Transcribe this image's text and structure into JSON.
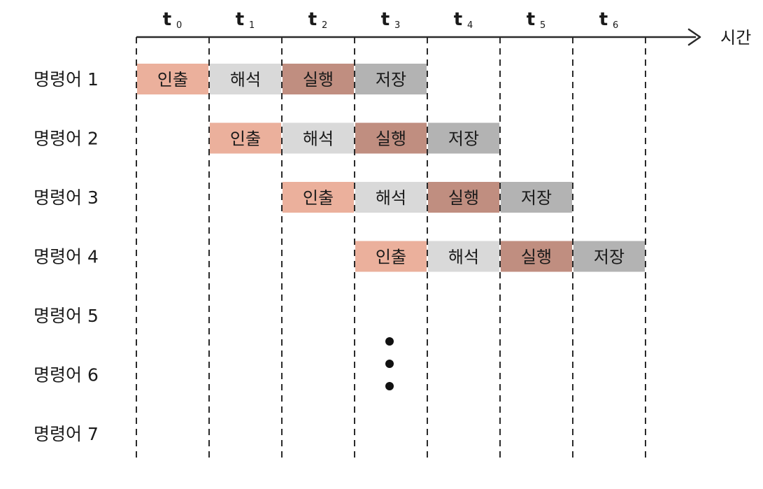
{
  "time_axis": {
    "label": "시간",
    "ticks": [
      {
        "main": "t",
        "sub": "0"
      },
      {
        "main": "t",
        "sub": "1"
      },
      {
        "main": "t",
        "sub": "2"
      },
      {
        "main": "t",
        "sub": "3"
      },
      {
        "main": "t",
        "sub": "4"
      },
      {
        "main": "t",
        "sub": "5"
      },
      {
        "main": "t",
        "sub": "6"
      }
    ]
  },
  "instructions": [
    {
      "label": "명령어 1",
      "start_tick": 0
    },
    {
      "label": "명령어 2",
      "start_tick": 1
    },
    {
      "label": "명령어 3",
      "start_tick": 2
    },
    {
      "label": "명령어 4",
      "start_tick": 3
    },
    {
      "label": "명령어 5",
      "start_tick": null
    },
    {
      "label": "명령어 6",
      "start_tick": null
    },
    {
      "label": "명령어 7",
      "start_tick": null
    }
  ],
  "stages": [
    {
      "name": "인출",
      "color": "#ebb09c"
    },
    {
      "name": "해석",
      "color": "#d9d9d9"
    },
    {
      "name": "실행",
      "color": "#c08e80"
    },
    {
      "name": "저장",
      "color": "#b3b3b3"
    }
  ],
  "ellipsis": {
    "dots": 3
  },
  "colors": {
    "line": "#2a2a2a",
    "text": "#1a1a1a"
  }
}
